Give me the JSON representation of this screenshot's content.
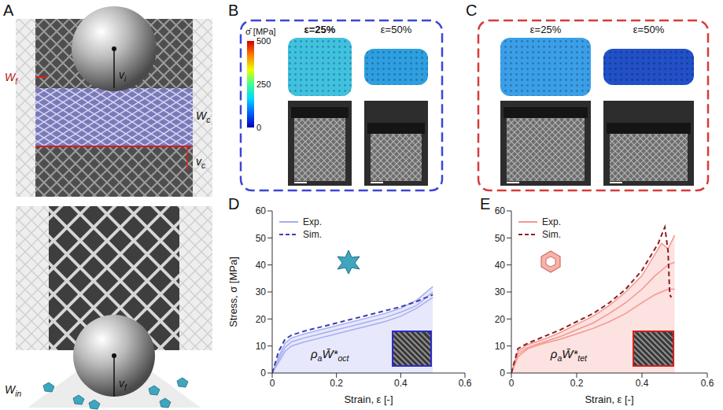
{
  "panels": {
    "A": {
      "label": "A",
      "texts": [
        {
          "text": "W",
          "sub": "f"
        },
        {
          "text": "v",
          "sub": "i"
        },
        {
          "text": "W",
          "sub": "c"
        },
        {
          "text": "v",
          "sub": "c"
        },
        {
          "text": "W",
          "sub": "in"
        },
        {
          "text": "v",
          "sub": "f"
        }
      ]
    },
    "B": {
      "label": "B",
      "colorbar": {
        "label": "σ̄ [MPa]",
        "range": [
          0,
          500
        ],
        "ticks": [
          0,
          250,
          500
        ]
      },
      "strains": [
        "ε=25%",
        "ε=50%"
      ]
    },
    "C": {
      "label": "C",
      "strains": [
        "ε=25%",
        "ε=50%"
      ]
    }
  },
  "chart_data": [
    {
      "panel": "D",
      "type": "line",
      "xlabel": "Strain, ε [-]",
      "ylabel": "Stress, σ [MPa]",
      "xlim": [
        0,
        0.6
      ],
      "xticks": [
        0,
        0.2,
        0.4,
        0.6
      ],
      "ylim": [
        0,
        60
      ],
      "yticks": [
        0,
        10,
        20,
        30,
        40,
        50,
        60
      ],
      "legend": "top left",
      "annotation": [
        {
          "text": "ρ",
          "sub": "a"
        },
        {
          "text": "W̄*",
          "sub": "oct"
        }
      ],
      "series": [
        {
          "name": "Exp.",
          "type": "area",
          "color": "#a8aef0",
          "line_style": "solid",
          "x": [
            0,
            0.02,
            0.04,
            0.06,
            0.1,
            0.15,
            0.2,
            0.25,
            0.3,
            0.35,
            0.4,
            0.45,
            0.5
          ],
          "values": [
            0,
            6,
            11,
            13,
            14.5,
            16,
            17.5,
            19,
            20.5,
            22,
            24,
            27,
            32
          ]
        },
        {
          "name": "Exp.",
          "type": "line",
          "color": "#a8aef0",
          "line_style": "solid",
          "x": [
            0,
            0.02,
            0.04,
            0.06,
            0.1,
            0.15,
            0.2,
            0.25,
            0.3,
            0.35,
            0.4,
            0.45,
            0.5
          ],
          "values": [
            0,
            5,
            9.5,
            11.5,
            13,
            14.5,
            16,
            17.5,
            19,
            20.5,
            22.5,
            25,
            30
          ]
        },
        {
          "name": "Exp.",
          "type": "line",
          "color": "#a8aef0",
          "line_style": "solid",
          "x": [
            0,
            0.02,
            0.04,
            0.06,
            0.1,
            0.15,
            0.2,
            0.25,
            0.3,
            0.35,
            0.4,
            0.45,
            0.5
          ],
          "values": [
            0,
            4,
            8,
            10,
            11.5,
            13,
            14.5,
            16,
            17.5,
            19,
            21,
            24,
            28
          ]
        },
        {
          "name": "Sim.",
          "type": "line",
          "color": "#3b3fb6",
          "line_style": "dashed",
          "x": [
            0,
            0.02,
            0.04,
            0.06,
            0.1,
            0.15,
            0.2,
            0.25,
            0.3,
            0.35,
            0.4,
            0.45,
            0.5
          ],
          "values": [
            0,
            8,
            12.5,
            14,
            15.5,
            17,
            18.5,
            20,
            21.5,
            23,
            24.5,
            26.5,
            29
          ]
        }
      ]
    },
    {
      "panel": "E",
      "type": "line",
      "xlabel": "Strain, ε [-]",
      "xlim": [
        0,
        0.6
      ],
      "xticks": [
        0,
        0.2,
        0.4,
        0.6
      ],
      "ylim": [
        0,
        60
      ],
      "yticks": [
        0,
        10,
        20,
        30,
        40,
        50,
        60
      ],
      "legend": "top left",
      "annotation": [
        {
          "text": "ρ",
          "sub": "a"
        },
        {
          "text": "W̄*",
          "sub": "tet"
        }
      ],
      "series": [
        {
          "name": "Exp.",
          "type": "area",
          "color": "#f4978e",
          "line_style": "solid",
          "x": [
            0,
            0.02,
            0.05,
            0.1,
            0.15,
            0.2,
            0.25,
            0.3,
            0.35,
            0.4,
            0.44,
            0.46,
            0.48,
            0.5
          ],
          "values": [
            0,
            8,
            10.5,
            12.5,
            15,
            18,
            21,
            25,
            30,
            36,
            44,
            48,
            46,
            51
          ]
        },
        {
          "name": "Exp.",
          "type": "line",
          "color": "#f4978e",
          "line_style": "solid",
          "x": [
            0,
            0.02,
            0.05,
            0.1,
            0.15,
            0.2,
            0.25,
            0.3,
            0.35,
            0.4,
            0.44,
            0.46,
            0.48,
            0.5
          ],
          "values": [
            0,
            7,
            9.5,
            11.5,
            13.5,
            16,
            18.5,
            22,
            26,
            31,
            36,
            38,
            40,
            41
          ]
        },
        {
          "name": "Exp.",
          "type": "line",
          "color": "#f4978e",
          "line_style": "solid",
          "x": [
            0,
            0.02,
            0.05,
            0.1,
            0.15,
            0.2,
            0.25,
            0.3,
            0.35,
            0.4,
            0.44,
            0.46,
            0.48,
            0.5
          ],
          "values": [
            0,
            6,
            9,
            11,
            12.5,
            14.5,
            16.5,
            19,
            22,
            26,
            29,
            30,
            31,
            31
          ]
        },
        {
          "name": "Sim.",
          "type": "line",
          "color": "#8e1f1f",
          "line_style": "dashed",
          "x": [
            0,
            0.02,
            0.05,
            0.1,
            0.15,
            0.2,
            0.25,
            0.3,
            0.35,
            0.4,
            0.45,
            0.47,
            0.48,
            0.485,
            0.49
          ],
          "values": [
            0,
            9,
            11,
            13.5,
            16,
            19,
            22,
            26,
            31,
            38,
            48,
            54,
            45,
            29,
            28
          ]
        }
      ]
    }
  ]
}
